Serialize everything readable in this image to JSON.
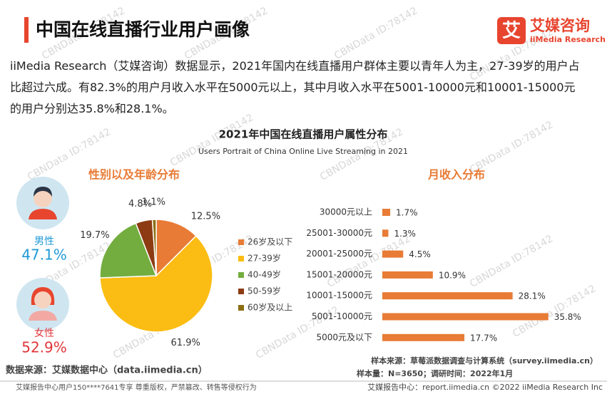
{
  "header": {
    "title": "中国在线直播行业用户画像",
    "logo_icon": "艾",
    "logo_cn": "艾媒咨询",
    "logo_en": "iiMedia Research"
  },
  "paragraph": "iiMedia Research（艾媒咨询）数据显示，2021年国内在线直播用户群体主要以青年人为主，27-39岁的用户占比超过六成。有82.3%的用户月收入水平在5000元以上，其中月收入水平在5001-10000元和10001-15000元的用户分别达35.8%和28.1%。",
  "figure": {
    "title": "2021年中国在线直播用户属性分布",
    "subtitle": "Users Portrait of China Online Live Streaming in 2021"
  },
  "chart_data": [
    {
      "type": "pie",
      "title": "性别以及年龄分布",
      "categories": [
        "26岁及以下",
        "27-39岁",
        "40-49岁",
        "50-59岁",
        "60岁及以上"
      ],
      "values": [
        12.5,
        61.9,
        19.7,
        4.8,
        1.1
      ],
      "value_labels": [
        "12.5%",
        "61.9%",
        "19.7%",
        "4.8%",
        "1.1%"
      ],
      "colors": [
        "#e87b35",
        "#fbbd13",
        "#73ad3f",
        "#8c3b12",
        "#8c6f12"
      ]
    },
    {
      "type": "hbar",
      "title": "月收入分布",
      "categories": [
        "30000元以上",
        "25001-30000元",
        "20001-25000元",
        "15001-20000元",
        "10001-15000元",
        "5001-10000元",
        "5000元及以下"
      ],
      "values": [
        1.7,
        1.3,
        4.5,
        10.9,
        28.1,
        35.8,
        17.7
      ],
      "value_labels": [
        "1.7%",
        "1.3%",
        "4.5%",
        "10.9%",
        "28.1%",
        "35.8%",
        "17.7%"
      ],
      "color": "#e87b35"
    }
  ],
  "gender": [
    {
      "label": "男性",
      "value": "47.1%"
    },
    {
      "label": "女性",
      "value": "52.9%"
    }
  ],
  "source": "数据来源：艾媒数据中心（data.iimedia.cn）",
  "sample_source": "样本来源：草莓派数据调查与计算系统（survey.iimedia.cn）",
  "sample_info": "样本量：N=3650；调研时间：2022年1月",
  "footer": {
    "left": "艾媒报告中心用户150****7641专享 尊重版权，严禁篡改、转售等侵权行为",
    "right": "艾媒报告中心：report.iimedia.cn ©2022 iiMedia Research Inc"
  },
  "watermark": "CBNData ID:78142"
}
